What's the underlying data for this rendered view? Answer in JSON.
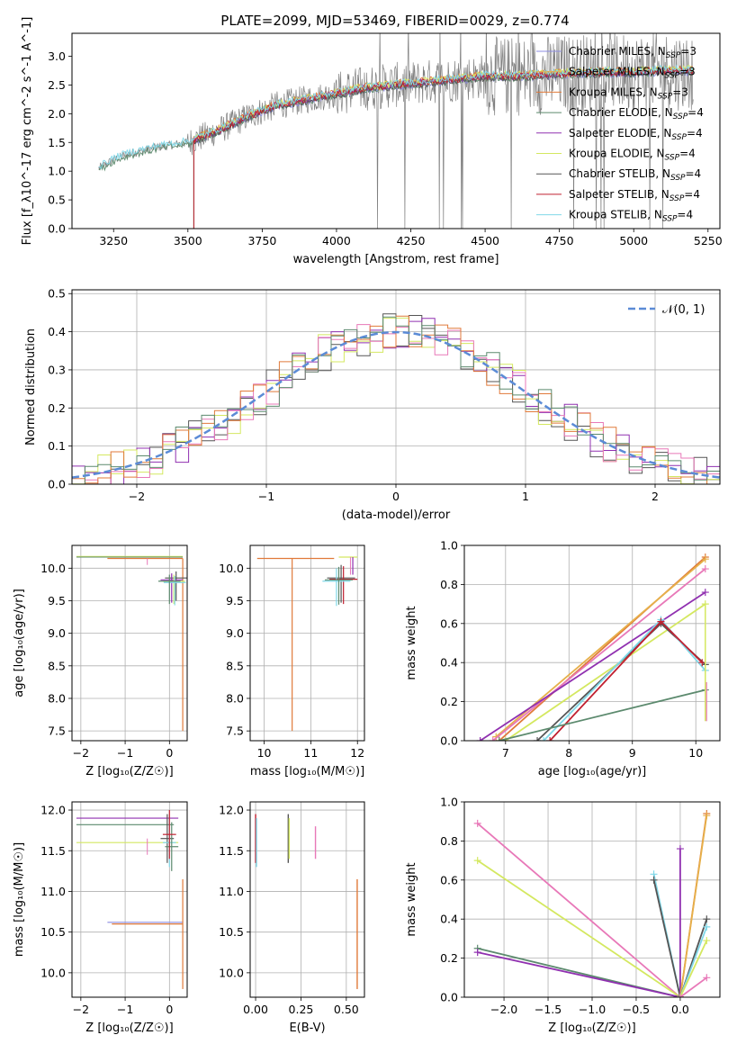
{
  "figure_title": "PLATE=2099, MJD=53469, FIBERID=0029, z=0.774",
  "colors": {
    "chabrier_miles": "#8c8ce0",
    "salpeter_miles": "#e6b04a",
    "kroupa_miles": "#e07a3a",
    "chabrier_elodie": "#5c8a6e",
    "salpeter_elodie": "#9030b0",
    "kroupa_elodie": "#d4e860",
    "chabrier_stelib": "#555555",
    "salpeter_stelib": "#c02030",
    "kroupa_stelib": "#80d8e8",
    "pink": "#e878b8",
    "data": "#808080",
    "gauss": "#5b8bd6",
    "grid": "#b0b0b0"
  },
  "chart_data": [
    {
      "id": "spectrum",
      "type": "line",
      "xlabel": "wavelength [Angstrom, rest frame]",
      "ylabel": "Flux [f_λ10^-17 erg cm^-2 s^-1 A^-1]",
      "xlim": [
        3110,
        5290
      ],
      "ylim": [
        0,
        3.4
      ],
      "xticks": [
        3250,
        3500,
        3750,
        4000,
        4250,
        4500,
        4750,
        5000,
        5250
      ],
      "yticks": [
        0.0,
        0.5,
        1.0,
        1.5,
        2.0,
        2.5,
        3.0
      ],
      "grid": false,
      "legend": [
        {
          "label": "Chabrier MILES, N",
          "sub": "SSP",
          "tail": "=3",
          "color": "#8c8ce0"
        },
        {
          "label": "Salpeter MILES, N",
          "sub": "SSP",
          "tail": "=3",
          "color": "#e6b04a"
        },
        {
          "label": "Kroupa MILES, N",
          "sub": "SSP",
          "tail": "=3",
          "color": "#e07a3a"
        },
        {
          "label": "Chabrier ELODIE, N",
          "sub": "SSP",
          "tail": "=4",
          "color": "#5c8a6e"
        },
        {
          "label": "Salpeter ELODIE, N",
          "sub": "SSP",
          "tail": "=4",
          "color": "#9030b0"
        },
        {
          "label": "Kroupa ELODIE, N",
          "sub": "SSP",
          "tail": "=4",
          "color": "#d4e860"
        },
        {
          "label": "Chabrier STELIB, N",
          "sub": "SSP",
          "tail": "=4",
          "color": "#555555"
        },
        {
          "label": "Salpeter STELIB, N",
          "sub": "SSP",
          "tail": "=4",
          "color": "#c02030"
        },
        {
          "label": "Kroupa STELIB, N",
          "sub": "SSP",
          "tail": "=4",
          "color": "#80d8e8"
        }
      ],
      "legend_loc": "right",
      "continuum": {
        "x": [
          3200,
          3250,
          3300,
          3400,
          3500,
          3600,
          3700,
          3800,
          3900,
          4000,
          4100,
          4200,
          4300,
          4400,
          4500,
          4600,
          4700,
          4800,
          4900,
          5000,
          5100,
          5200
        ],
        "y": [
          1.05,
          1.2,
          1.3,
          1.42,
          1.5,
          1.7,
          1.95,
          2.15,
          2.25,
          2.35,
          2.45,
          2.5,
          2.55,
          2.6,
          2.65,
          2.65,
          2.68,
          2.7,
          2.72,
          2.72,
          2.75,
          2.75
        ]
      }
    },
    {
      "id": "residuals",
      "type": "bar",
      "xlabel": "(data-model)/error",
      "ylabel": "Normed distribution",
      "xlim": [
        -2.5,
        2.5
      ],
      "ylim": [
        0,
        0.51
      ],
      "xticks": [
        -2,
        -1,
        0,
        1,
        2
      ],
      "yticks": [
        0.0,
        0.1,
        0.2,
        0.3,
        0.4,
        0.5
      ],
      "grid": true,
      "legend": [
        {
          "label": "𝒩(0, 1)",
          "color": "#5b8bd6"
        }
      ],
      "legend_loc": "upper right",
      "bin_width": 0.1
    },
    {
      "id": "age_vs_z",
      "type": "scatter",
      "xlabel": "Z [log₁₀(Z/Z☉)]",
      "ylabel": "age  [log₁₀(age/yr)]",
      "xlim": [
        -2.2,
        0.4
      ],
      "ylim": [
        7.35,
        10.35
      ],
      "xticks": [
        -2,
        -1,
        0
      ],
      "yticks": [
        7.5,
        8.0,
        8.5,
        9.0,
        9.5,
        10.0
      ],
      "grid": true
    },
    {
      "id": "age_vs_mass",
      "type": "scatter",
      "xlabel": "mass [log₁₀(M/M☉)]",
      "xlim": [
        9.7,
        12.15
      ],
      "ylim": [
        7.35,
        10.35
      ],
      "xticks": [
        10,
        11,
        12
      ],
      "yticks": [
        7.5,
        8.0,
        8.5,
        9.0,
        9.5,
        10.0
      ],
      "grid": true
    },
    {
      "id": "weight_vs_age",
      "type": "line",
      "xlabel": "age  [log₁₀(age/yr)]",
      "ylabel": "mass weight",
      "xlim": [
        6.35,
        10.38
      ],
      "ylim": [
        0,
        1
      ],
      "xticks": [
        7,
        8,
        9,
        10
      ],
      "yticks": [
        0.0,
        0.2,
        0.4,
        0.6,
        0.8,
        1.0
      ],
      "grid": true
    },
    {
      "id": "mass_vs_z",
      "type": "scatter",
      "xlabel": "Z [log₁₀(Z/Z☉)]",
      "ylabel": "mass [log₁₀(M/M☉)]",
      "xlim": [
        -2.2,
        0.4
      ],
      "ylim": [
        9.7,
        12.1
      ],
      "xticks": [
        -2,
        -1,
        0
      ],
      "yticks": [
        10.0,
        10.5,
        11.0,
        11.5,
        12.0
      ],
      "grid": true
    },
    {
      "id": "mass_vs_ebv",
      "type": "scatter",
      "xlabel": "E(B-V)",
      "xlim": [
        -0.03,
        0.6
      ],
      "ylim": [
        9.7,
        12.1
      ],
      "xticks": [
        0.0,
        0.25,
        0.5
      ],
      "yticks": [
        10.0,
        10.5,
        11.0,
        11.5,
        12.0
      ],
      "grid": true
    },
    {
      "id": "weight_vs_z",
      "type": "line",
      "xlabel": "Z [log₁₀(Z/Z☉)]",
      "ylabel": "mass weight",
      "xlim": [
        -2.45,
        0.45
      ],
      "ylim": [
        0,
        1
      ],
      "xticks": [
        -2.0,
        -1.5,
        -1.0,
        -0.5,
        0.0
      ],
      "yticks": [
        0.0,
        0.2,
        0.4,
        0.6,
        0.8,
        1.0
      ],
      "grid": true
    }
  ]
}
